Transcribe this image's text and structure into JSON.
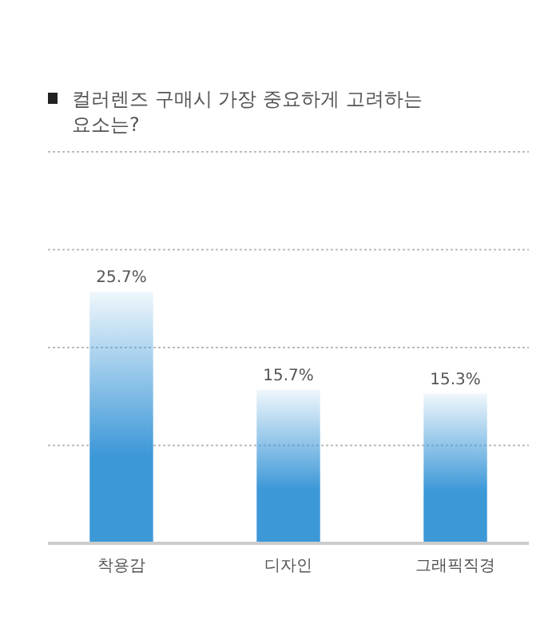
{
  "chart_data": {
    "type": "bar",
    "title": "컬러렌즈 구매시 가장 중요하게 고려하는 요소는?",
    "categories": [
      "착용감",
      "디자인",
      "그래픽직경"
    ],
    "values": [
      25.7,
      15.7,
      15.3
    ],
    "value_labels": [
      "25.7%",
      "15.7%",
      "15.3%"
    ],
    "color": "#3d98d8",
    "ylim": [
      0,
      40
    ],
    "yticks": [
      {
        "value": 10,
        "label": null
      },
      {
        "value": 20,
        "label": null
      },
      {
        "value": 30,
        "label": null
      },
      {
        "value": 40,
        "label": null
      }
    ],
    "grid": "y",
    "tick_labels": "x"
  }
}
